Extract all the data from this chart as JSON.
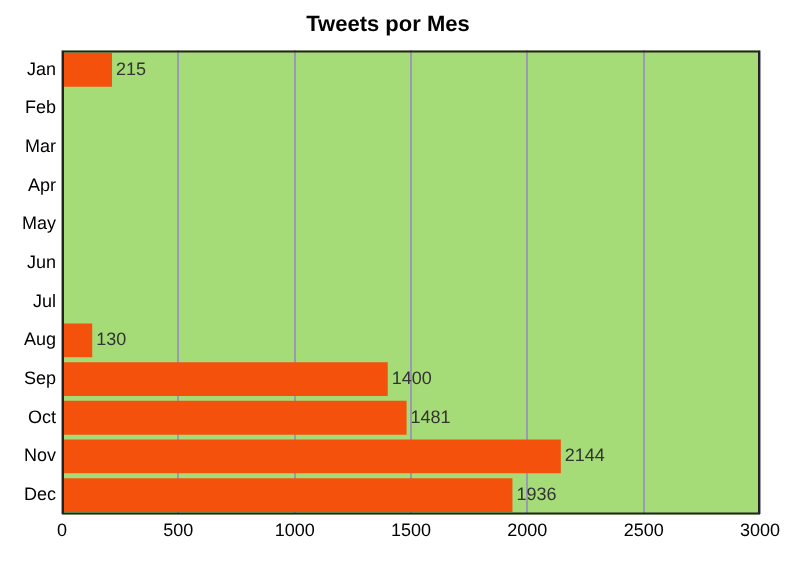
{
  "chart_data": {
    "type": "bar",
    "orientation": "horizontal",
    "title": "Tweets por Mes",
    "categories": [
      "Jan",
      "Feb",
      "Mar",
      "Apr",
      "May",
      "Jun",
      "Jul",
      "Aug",
      "Sep",
      "Oct",
      "Nov",
      "Dec"
    ],
    "values": [
      215,
      null,
      null,
      null,
      null,
      null,
      null,
      130,
      1400,
      1481,
      2144,
      1936
    ],
    "color": "#f4520c",
    "xlim": [
      0,
      3000
    ],
    "xticks": [
      0,
      500,
      1000,
      1500,
      2000,
      2500,
      3000
    ],
    "grid": "x",
    "legend": false,
    "data_labels": true
  }
}
